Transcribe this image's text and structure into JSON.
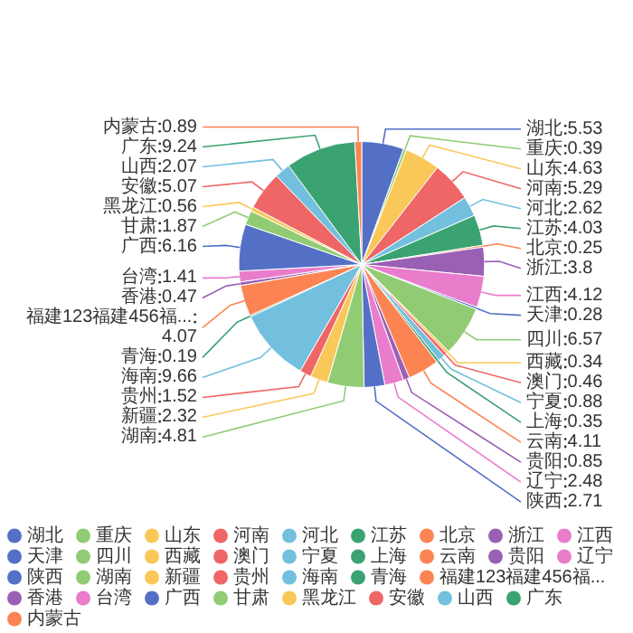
{
  "chart_data": {
    "type": "pie",
    "categories": [
      "湖北",
      "重庆",
      "山东",
      "河南",
      "河北",
      "江苏",
      "北京",
      "浙江",
      "江西",
      "天津",
      "四川",
      "西藏",
      "澳门",
      "宁夏",
      "上海",
      "云南",
      "贵阳",
      "辽宁",
      "陕西",
      "湖南",
      "新疆",
      "贵州",
      "海南",
      "青海",
      "福建123福建456福...",
      "香港",
      "台湾",
      "广西",
      "甘肃",
      "黑龙江",
      "安徽",
      "山西",
      "广东",
      "内蒙古"
    ],
    "values": [
      5.53,
      0.39,
      4.63,
      5.29,
      2.62,
      4.03,
      0.25,
      3.8,
      4.12,
      0.28,
      6.57,
      0.34,
      0.46,
      0.88,
      0.35,
      4.11,
      0.85,
      2.48,
      2.71,
      4.81,
      2.32,
      1.52,
      9.66,
      0.19,
      4.07,
      0.47,
      1.41,
      6.16,
      1.87,
      0.56,
      5.07,
      2.07,
      9.24,
      0.89
    ],
    "colors": [
      "#5470c6",
      "#91cc75",
      "#fac858",
      "#ee6666",
      "#73c0de",
      "#3ba272",
      "#fc8452",
      "#9a60b4",
      "#ea7ccc",
      "#5470c6",
      "#91cc75",
      "#fac858",
      "#ee6666",
      "#73c0de",
      "#3ba272",
      "#fc8452",
      "#9a60b4",
      "#ea7ccc",
      "#5470c6",
      "#91cc75",
      "#fac858",
      "#ee6666",
      "#73c0de",
      "#3ba272",
      "#fc8452",
      "#9a60b4",
      "#ea7ccc",
      "#5470c6",
      "#91cc75",
      "#fac858",
      "#ee6666",
      "#73c0de",
      "#3ba272",
      "#fc8452"
    ],
    "data_labels": true,
    "legend": "bottom"
  }
}
